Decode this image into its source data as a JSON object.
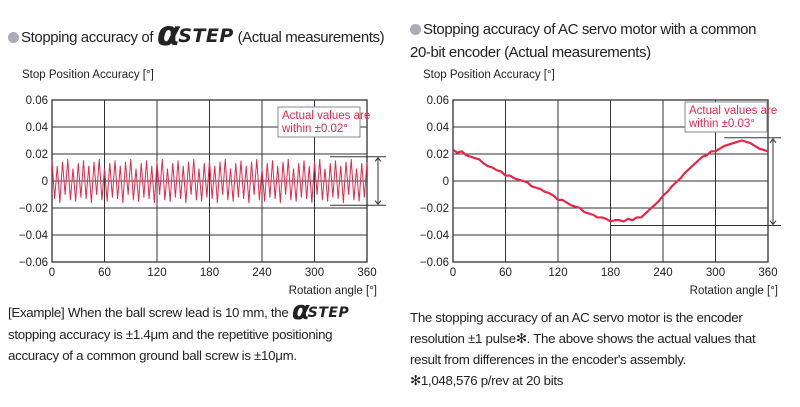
{
  "left": {
    "title_prefix": "Stopping accuracy of",
    "logo_alpha": "α",
    "logo_step": "STEP",
    "title_suffix": "(Actual measurements)",
    "paragraph": {
      "part1": "[Example] When the ball screw lead is 10 mm, the",
      "part2": "stopping accuracy is ±1.4μm and the repetitive positioning accuracy of a common ground ball screw is ±10μm."
    }
  },
  "right": {
    "title_line1": "Stopping accuracy of AC servo motor with a common",
    "title_line2": "20-bit encoder (Actual measurements)",
    "paragraph": {
      "line1": "The stopping accuracy of an AC servo motor is the encoder",
      "line2": "resolution ±1 pulse✻. The above shows the actual values that",
      "line3": "result from differences in the encoder's assembly.",
      "line4": "✻1,048,576 p/rev at 20 bits"
    }
  },
  "colors": {
    "series": "#e8264a",
    "annotation": "#e8264a",
    "bullet": "#a9adb8"
  },
  "chart_data": [
    {
      "type": "line",
      "ylabel": "Stop Position Accuracy [°]",
      "xlabel": "Rotation angle [°]",
      "xlim": [
        0,
        360
      ],
      "ylim": [
        -0.06,
        0.06
      ],
      "xticks": [
        "0",
        "60",
        "120",
        "180",
        "240",
        "300",
        "360"
      ],
      "yticks": [
        "0.06",
        "0.04",
        "0.02",
        "0",
        "−0.02",
        "−0.04",
        "−0.06"
      ],
      "grid": true,
      "annotation": {
        "line1": "Actual values are",
        "line2": "within ±0.02°",
        "range": [
          -0.018,
          0.018
        ]
      },
      "x_step": 3,
      "values": [
        0.015,
        -0.013,
        0.011,
        -0.016,
        0.014,
        -0.01,
        0.016,
        -0.014,
        0.009,
        -0.015,
        0.013,
        -0.012,
        0.015,
        -0.013,
        0.011,
        -0.016,
        0.014,
        -0.01,
        0.016,
        -0.014,
        0.009,
        -0.015,
        0.013,
        -0.012,
        0.015,
        -0.013,
        0.011,
        -0.016,
        0.014,
        -0.01,
        0.016,
        -0.014,
        0.009,
        -0.015,
        0.013,
        -0.012,
        0.015,
        -0.013,
        0.011,
        -0.016,
        0.014,
        -0.01,
        0.016,
        -0.014,
        0.009,
        -0.015,
        0.013,
        -0.012,
        0.015,
        -0.013,
        0.011,
        -0.016,
        0.014,
        -0.01,
        0.016,
        -0.014,
        0.009,
        -0.015,
        0.013,
        -0.012,
        0.015,
        -0.013,
        0.011,
        -0.016,
        0.014,
        -0.01,
        0.016,
        -0.014,
        0.009,
        -0.015,
        0.013,
        -0.012,
        0.015,
        -0.013,
        0.011,
        -0.016,
        0.014,
        -0.01,
        0.016,
        -0.014,
        0.009,
        -0.015,
        0.013,
        -0.012,
        0.015,
        -0.013,
        0.011,
        -0.016,
        0.014,
        -0.01,
        0.016,
        -0.014,
        0.009,
        -0.015,
        0.013,
        -0.012,
        0.015,
        -0.013,
        0.011,
        -0.016,
        0.014,
        -0.01,
        0.016,
        -0.014,
        0.009,
        -0.015,
        0.013,
        -0.012,
        0.015,
        -0.013,
        0.011,
        -0.016,
        0.014,
        -0.01,
        0.016,
        -0.014,
        0.009,
        -0.015,
        0.013,
        -0.012,
        0.014
      ]
    },
    {
      "type": "line",
      "ylabel": "Stop Position Accuracy [°]",
      "xlabel": "Rotation angle [°]",
      "xlim": [
        0,
        360
      ],
      "ylim": [
        -0.06,
        0.06
      ],
      "xticks": [
        "0",
        "60",
        "120",
        "180",
        "240",
        "300",
        "360"
      ],
      "yticks": [
        "0.06",
        "0.04",
        "0.02",
        "0",
        "−0.02",
        "−0.04",
        "−0.06"
      ],
      "grid": true,
      "annotation": {
        "line1": "Actual values are",
        "line2": "within ±0.03°",
        "range": [
          -0.033,
          0.032
        ]
      },
      "x": [
        0,
        5,
        10,
        15,
        20,
        25,
        30,
        35,
        40,
        45,
        50,
        55,
        60,
        65,
        70,
        75,
        80,
        85,
        90,
        95,
        100,
        105,
        110,
        115,
        120,
        125,
        130,
        135,
        140,
        145,
        150,
        155,
        160,
        165,
        170,
        175,
        180,
        185,
        190,
        195,
        200,
        205,
        210,
        215,
        220,
        225,
        230,
        235,
        240,
        245,
        250,
        255,
        260,
        265,
        270,
        275,
        280,
        285,
        290,
        295,
        300,
        305,
        310,
        315,
        320,
        325,
        330,
        335,
        340,
        345,
        350,
        355,
        360
      ],
      "y": [
        0.023,
        0.021,
        0.022,
        0.019,
        0.018,
        0.017,
        0.016,
        0.013,
        0.011,
        0.01,
        0.008,
        0.007,
        0.004,
        0.004,
        0.002,
        0.001,
        0.0,
        -0.001,
        -0.004,
        -0.005,
        -0.006,
        -0.008,
        -0.009,
        -0.011,
        -0.014,
        -0.014,
        -0.016,
        -0.018,
        -0.019,
        -0.02,
        -0.023,
        -0.024,
        -0.025,
        -0.027,
        -0.027,
        -0.028,
        -0.03,
        -0.029,
        -0.029,
        -0.03,
        -0.028,
        -0.029,
        -0.027,
        -0.027,
        -0.024,
        -0.021,
        -0.018,
        -0.015,
        -0.011,
        -0.008,
        -0.004,
        -0.001,
        0.002,
        0.006,
        0.009,
        0.012,
        0.015,
        0.018,
        0.019,
        0.022,
        0.022,
        0.024,
        0.026,
        0.027,
        0.028,
        0.029,
        0.03,
        0.029,
        0.028,
        0.026,
        0.024,
        0.023,
        0.022
      ]
    }
  ]
}
